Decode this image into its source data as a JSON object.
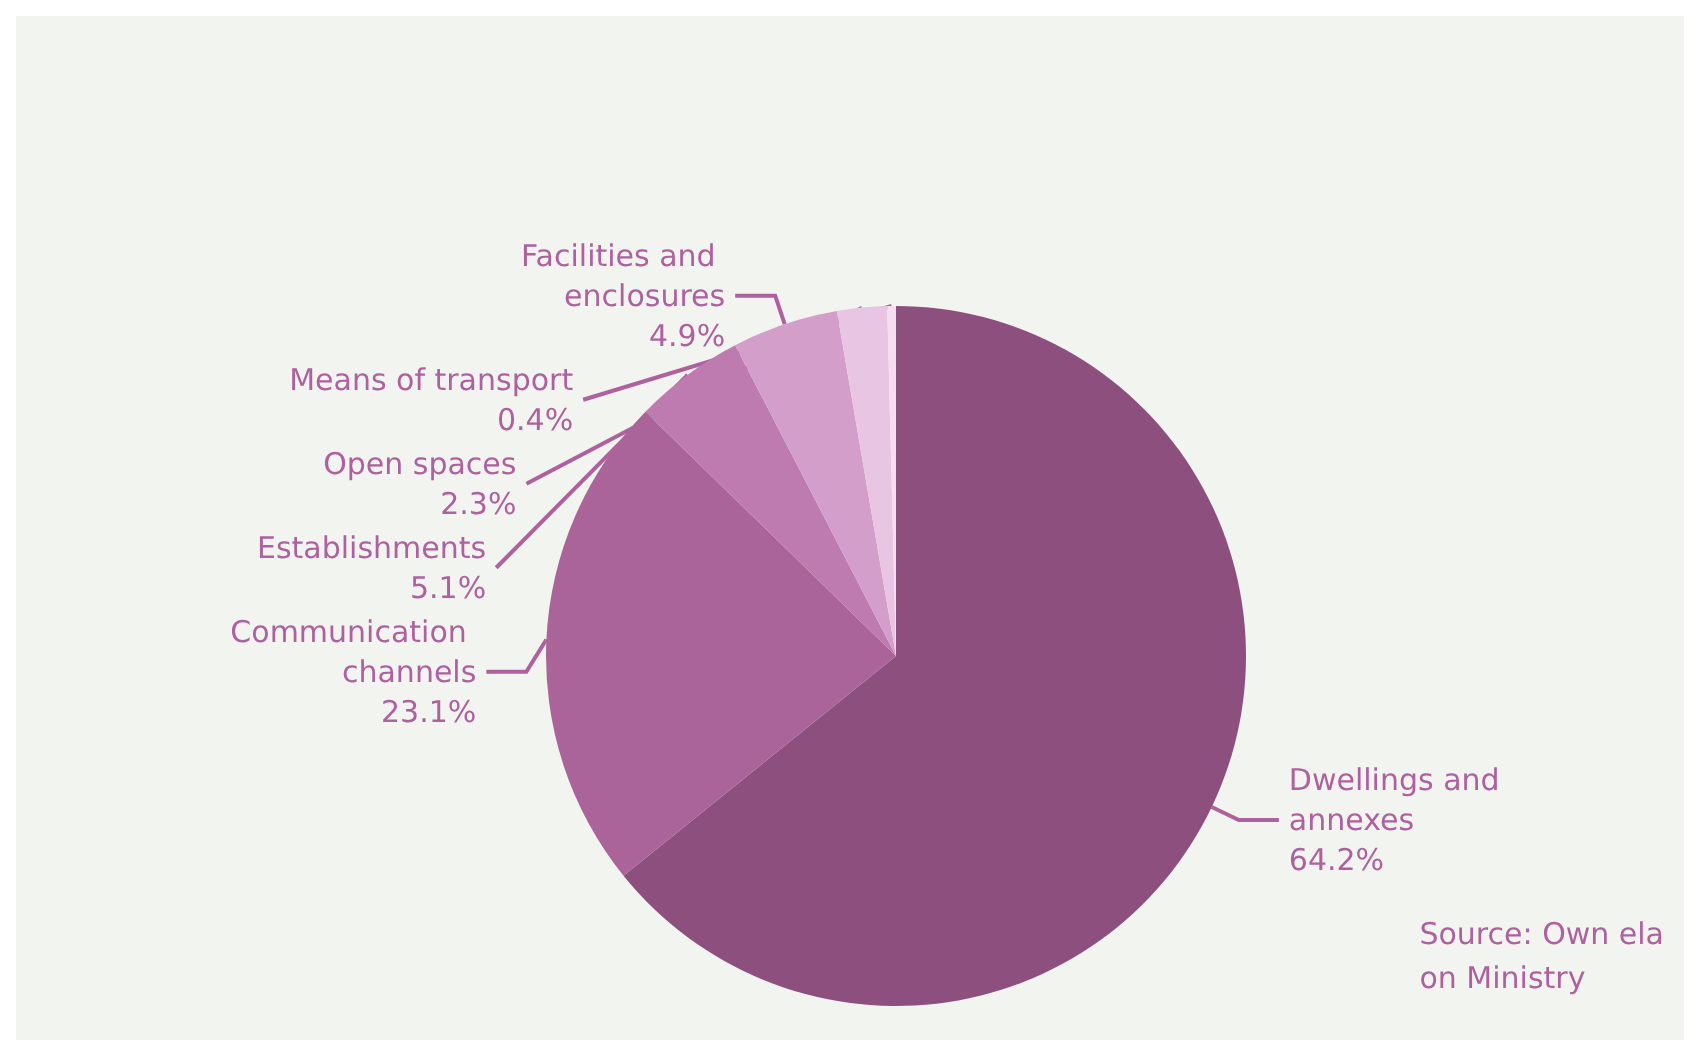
{
  "chart_data": {
    "type": "pie",
    "categories": [
      "Dwellings and annexes",
      "Communication channels",
      "Establishments",
      "Facilities and enclosures",
      "Open spaces",
      "Means of transport"
    ],
    "values": [
      64.2,
      23.1,
      5.1,
      4.9,
      2.3,
      0.4
    ],
    "value_labels": [
      "64.2%",
      "23.1%",
      "5.1%",
      "4.9%",
      "2.3%",
      "0.4%"
    ],
    "colors": [
      "#8c4f7e",
      "#ab6499",
      "#be7bb0",
      "#d39fca",
      "#e8c6e3",
      "#f4dfef"
    ],
    "annotations": [
      "Source: Own ela\non Ministry"
    ],
    "legend": false
  }
}
